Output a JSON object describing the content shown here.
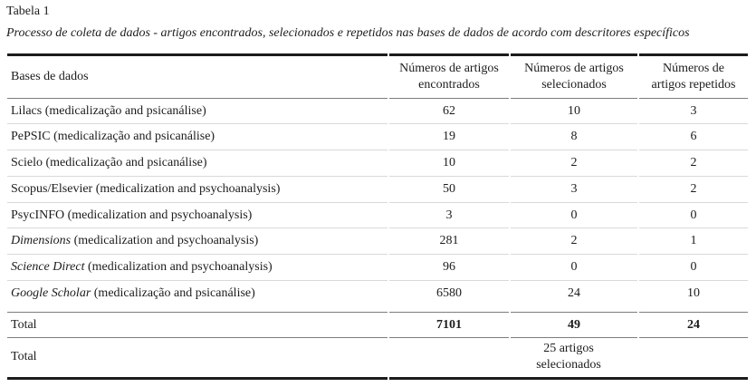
{
  "title": "Tabela 1",
  "caption": "Processo de coleta de dados - artigos encontrados, selecionados e repetidos nas bases de dados de acordo com descritores específicos",
  "colors": {
    "heavy_rule": "#1c1c1c",
    "medium_rule": "#7d7d7d",
    "light_rule": "#d9d9d9",
    "text": "#1c1c1c",
    "background": "#ffffff"
  },
  "table": {
    "header": {
      "col1": "Bases de dados",
      "col2": "Números de artigos\nencontrados",
      "col3": "Números de artigos\nselecionados",
      "col4": "Números de\nartigos repetidos"
    },
    "rows": [
      {
        "name": "Lilacs",
        "name_italic": false,
        "descriptor": " (medicalização and psicanálise)",
        "found": "62",
        "selected": "10",
        "repeated": "3"
      },
      {
        "name": "PePSIC",
        "name_italic": false,
        "descriptor": " (medicalização and psicanálise)",
        "found": "19",
        "selected": "8",
        "repeated": "6"
      },
      {
        "name": "Scielo",
        "name_italic": false,
        "descriptor": " (medicalização and psicanálise)",
        "found": "10",
        "selected": "2",
        "repeated": "2"
      },
      {
        "name": "Scopus/Elsevier",
        "name_italic": false,
        "descriptor": " (medicalization and psychoanalysis)",
        "found": "50",
        "selected": "3",
        "repeated": "2"
      },
      {
        "name": "PsycINFO",
        "name_italic": false,
        "descriptor": " (medicalization and psychoanalysis)",
        "found": "3",
        "selected": "0",
        "repeated": "0"
      },
      {
        "name": "Dimensions",
        "name_italic": true,
        "descriptor": " (medicalization and psychoanalysis)",
        "found": "281",
        "selected": "2",
        "repeated": "1"
      },
      {
        "name": "Science Direct",
        "name_italic": true,
        "descriptor": " (medicalization and psychoanalysis)",
        "found": "96",
        "selected": "0",
        "repeated": "0"
      },
      {
        "name": "Google Scholar",
        "name_italic": true,
        "descriptor": " (medicalização and psicanálise)",
        "found": "6580",
        "selected": "24",
        "repeated": "10"
      }
    ],
    "totals": {
      "row1": {
        "label": "Total",
        "found": "7101",
        "selected": "49",
        "repeated": "24"
      },
      "row2": {
        "label": "Total",
        "value": "25 artigos\nselecionados"
      }
    }
  }
}
